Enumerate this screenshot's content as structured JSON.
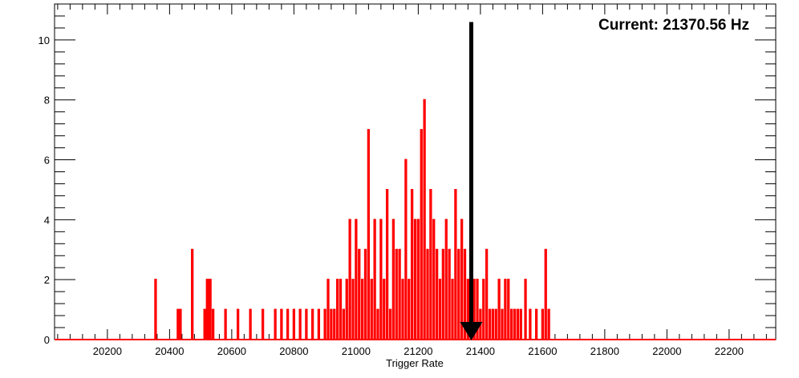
{
  "chart_data": {
    "type": "histogram",
    "title": "",
    "xlabel": "Trigger Rate",
    "ylabel": "",
    "xlim": [
      20030,
      22350
    ],
    "ylim": [
      0,
      11.2
    ],
    "grid": false,
    "x_ticks": [
      20200,
      20400,
      20600,
      20800,
      21000,
      21200,
      21400,
      21600,
      21800,
      22000,
      22200
    ],
    "x_tick_labels": [
      "20200",
      "20400",
      "20600",
      "20800",
      "21000",
      "21200",
      "21400",
      "21600",
      "21800",
      "22000",
      "22200"
    ],
    "y_ticks": [
      0,
      2,
      4,
      6,
      8,
      10
    ],
    "y_tick_labels": [
      "0",
      "2",
      "4",
      "6",
      "8",
      "10"
    ],
    "series": [
      {
        "color": "#ff0000",
        "bins": [
          [
            20355,
            2
          ],
          [
            20427,
            1
          ],
          [
            20435,
            1
          ],
          [
            20473,
            3
          ],
          [
            20513,
            1
          ],
          [
            20521,
            2
          ],
          [
            20527,
            2
          ],
          [
            20531,
            2
          ],
          [
            20540,
            1
          ],
          [
            20580,
            1
          ],
          [
            20620,
            1
          ],
          [
            20660,
            1
          ],
          [
            20700,
            1
          ],
          [
            20740,
            1
          ],
          [
            20760,
            1
          ],
          [
            20780,
            1
          ],
          [
            20800,
            1
          ],
          [
            20820,
            1
          ],
          [
            20840,
            1
          ],
          [
            20860,
            1
          ],
          [
            20880,
            1
          ],
          [
            20900,
            1
          ],
          [
            20910,
            2
          ],
          [
            20920,
            1
          ],
          [
            20930,
            1
          ],
          [
            20940,
            2
          ],
          [
            20950,
            2
          ],
          [
            20960,
            1
          ],
          [
            20970,
            2
          ],
          [
            20980,
            4
          ],
          [
            20990,
            2
          ],
          [
            21000,
            4
          ],
          [
            21010,
            3
          ],
          [
            21020,
            2
          ],
          [
            21030,
            3
          ],
          [
            21040,
            7
          ],
          [
            21050,
            2
          ],
          [
            21060,
            4
          ],
          [
            21070,
            1
          ],
          [
            21080,
            4
          ],
          [
            21090,
            2
          ],
          [
            21100,
            5
          ],
          [
            21110,
            1
          ],
          [
            21120,
            4
          ],
          [
            21130,
            3
          ],
          [
            21140,
            3
          ],
          [
            21150,
            2
          ],
          [
            21160,
            6
          ],
          [
            21170,
            2
          ],
          [
            21180,
            5
          ],
          [
            21190,
            4
          ],
          [
            21200,
            4
          ],
          [
            21210,
            7
          ],
          [
            21220,
            8
          ],
          [
            21230,
            3
          ],
          [
            21240,
            5
          ],
          [
            21250,
            4
          ],
          [
            21260,
            3
          ],
          [
            21270,
            2
          ],
          [
            21280,
            3
          ],
          [
            21290,
            4
          ],
          [
            21300,
            3
          ],
          [
            21310,
            2
          ],
          [
            21320,
            5
          ],
          [
            21330,
            3
          ],
          [
            21340,
            4
          ],
          [
            21350,
            3
          ],
          [
            21360,
            2
          ],
          [
            21370,
            1
          ],
          [
            21380,
            2
          ],
          [
            21390,
            2
          ],
          [
            21400,
            1
          ],
          [
            21410,
            2
          ],
          [
            21420,
            3
          ],
          [
            21430,
            1
          ],
          [
            21440,
            1
          ],
          [
            21450,
            1
          ],
          [
            21460,
            2
          ],
          [
            21470,
            1
          ],
          [
            21480,
            2
          ],
          [
            21490,
            2
          ],
          [
            21500,
            1
          ],
          [
            21510,
            1
          ],
          [
            21520,
            1
          ],
          [
            21530,
            1
          ],
          [
            21545,
            2
          ],
          [
            21560,
            1
          ],
          [
            21580,
            1
          ],
          [
            21600,
            1
          ],
          [
            21610,
            3
          ],
          [
            21620,
            1
          ]
        ]
      }
    ],
    "marker": {
      "label": "Current: 21370.56 Hz",
      "x": 21370.56,
      "y_top": 10.6,
      "color": "#000000"
    }
  }
}
